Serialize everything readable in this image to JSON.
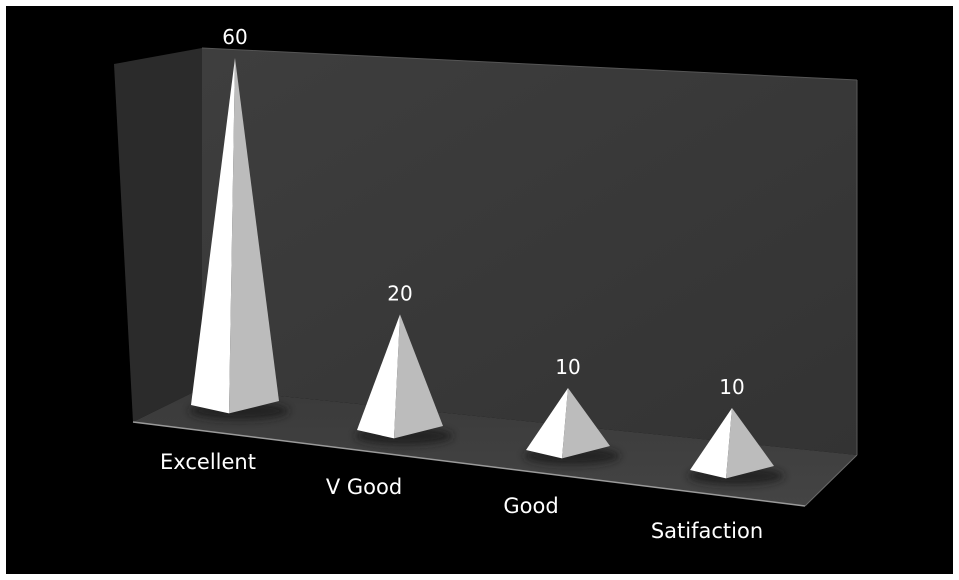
{
  "chart_data": {
    "type": "bar",
    "bar_shape": "pyramid",
    "style": "3d",
    "categories": [
      "Excellent",
      "V Good",
      "Good",
      "Satifaction"
    ],
    "values": [
      60,
      20,
      10,
      10
    ],
    "data_labels": [
      "60",
      "20",
      "10",
      "10"
    ],
    "title": "",
    "xlabel": "",
    "ylabel": "",
    "ylim": [
      0,
      60
    ],
    "grid": false,
    "legend": "none",
    "colors": {
      "background": "#000000",
      "back_wall": "#3a3a3a",
      "side_wall": "#2a2a2a",
      "floor": "#3c3c3c",
      "pyramid_light": "#ffffff",
      "pyramid_shade": "#bcbcbc",
      "text": "#ffffff"
    }
  }
}
